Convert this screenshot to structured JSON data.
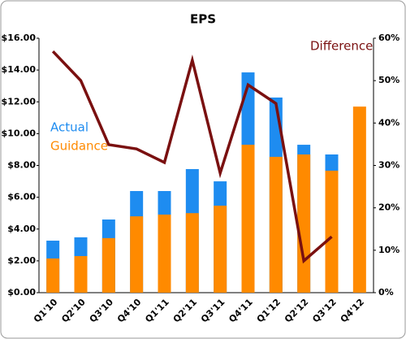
{
  "chart_data": {
    "type": "bar-line",
    "title": "EPS",
    "categories": [
      "Q1'10",
      "Q2'10",
      "Q3'10",
      "Q4'10",
      "Q1'11",
      "Q2'11",
      "Q3'11",
      "Q4'11",
      "Q1'12",
      "Q2'12",
      "Q3'12",
      "Q4'12"
    ],
    "series": [
      {
        "name": "Actual",
        "color": "#1e8cf0",
        "values": [
          3.27,
          3.48,
          4.6,
          6.39,
          6.39,
          7.77,
          7.0,
          13.85,
          12.27,
          9.3,
          8.69,
          null
        ]
      },
      {
        "name": "Guidance",
        "color": "#ff8a00",
        "values": [
          2.15,
          2.3,
          3.43,
          4.8,
          4.91,
          5.0,
          5.47,
          9.3,
          8.54,
          8.69,
          7.67,
          11.7
        ]
      },
      {
        "name": "Difference",
        "color": "#7a1010",
        "axis": "y2",
        "values": [
          56.9,
          50,
          34.9,
          33.9,
          30.7,
          54.8,
          28.2,
          49,
          44.6,
          7.5,
          13.2,
          null
        ]
      }
    ],
    "ylim": [
      0,
      16
    ],
    "yticks": [
      {
        "value": 0,
        "label": "$0.00"
      },
      {
        "value": 2,
        "label": "$2.00"
      },
      {
        "value": 4,
        "label": "$4.00"
      },
      {
        "value": 6,
        "label": "$6.00"
      },
      {
        "value": 8,
        "label": "$8.00"
      },
      {
        "value": 10,
        "label": "$10.00"
      },
      {
        "value": 12,
        "label": "$12.00"
      },
      {
        "value": 14,
        "label": "$14.00"
      },
      {
        "value": 16,
        "label": "$16.00"
      }
    ],
    "y2lim": [
      0,
      60
    ],
    "y2ticks": [
      {
        "value": 0,
        "label": "0%"
      },
      {
        "value": 10,
        "label": "10%"
      },
      {
        "value": 20,
        "label": "20%"
      },
      {
        "value": 30,
        "label": "30%"
      },
      {
        "value": 40,
        "label": "40%"
      },
      {
        "value": 50,
        "label": "50%"
      },
      {
        "value": 60,
        "label": "60%"
      }
    ]
  }
}
